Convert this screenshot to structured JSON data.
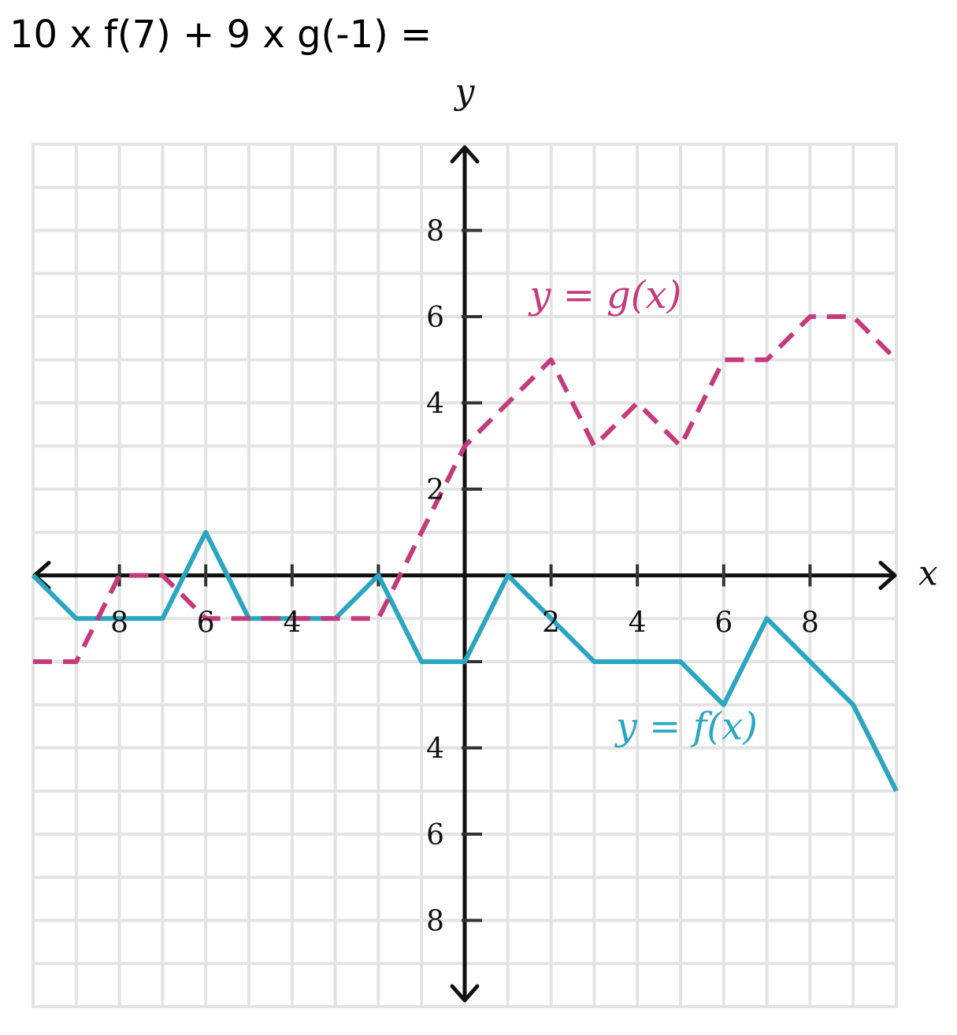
{
  "question": "10 x f(7) + 9 x g(-1) =",
  "chart_data": {
    "type": "line",
    "xlabel": "x",
    "ylabel": "y",
    "xlim": [
      -10,
      10
    ],
    "ylim": [
      -10,
      10
    ],
    "grid": true,
    "x_tick_labels": [
      {
        "value": -8,
        "text": "8"
      },
      {
        "value": -6,
        "text": "6"
      },
      {
        "value": -4,
        "text": "4"
      },
      {
        "value": 2,
        "text": "2"
      },
      {
        "value": 4,
        "text": "4"
      },
      {
        "value": 6,
        "text": "6"
      },
      {
        "value": 8,
        "text": "8"
      }
    ],
    "y_tick_labels": [
      {
        "value": 8,
        "text": "8"
      },
      {
        "value": 6,
        "text": "6"
      },
      {
        "value": 4,
        "text": "4"
      },
      {
        "value": 2,
        "text": "2"
      },
      {
        "value": -4,
        "text": "4"
      },
      {
        "value": -6,
        "text": "6"
      },
      {
        "value": -8,
        "text": "8"
      }
    ],
    "series": [
      {
        "name": "y = f(x)",
        "color": "#2aa6c0",
        "dash": "solid",
        "label_anchor": [
          3.5,
          -3.8
        ],
        "points": [
          [
            -10,
            0
          ],
          [
            -9,
            -1
          ],
          [
            -7,
            -1
          ],
          [
            -6,
            1
          ],
          [
            -5,
            -1
          ],
          [
            -3,
            -1
          ],
          [
            -2,
            0
          ],
          [
            -1,
            -2
          ],
          [
            0,
            -2
          ],
          [
            1,
            0
          ],
          [
            3,
            -2
          ],
          [
            5,
            -2
          ],
          [
            6,
            -3
          ],
          [
            7,
            -1
          ],
          [
            9,
            -3
          ],
          [
            10,
            -5
          ]
        ]
      },
      {
        "name": "y = g(x)",
        "color": "#c43b7c",
        "dash": "dashed",
        "label_anchor": [
          1.5,
          6.2
        ],
        "points": [
          [
            -10,
            -2
          ],
          [
            -9,
            -2
          ],
          [
            -8,
            0
          ],
          [
            -7,
            0
          ],
          [
            -6,
            -1
          ],
          [
            -2,
            -1
          ],
          [
            0,
            3
          ],
          [
            2,
            5
          ],
          [
            3,
            3
          ],
          [
            4,
            4
          ],
          [
            5,
            3
          ],
          [
            6,
            5
          ],
          [
            7,
            5
          ],
          [
            8,
            6
          ],
          [
            9,
            6
          ],
          [
            10,
            5
          ]
        ]
      }
    ]
  }
}
